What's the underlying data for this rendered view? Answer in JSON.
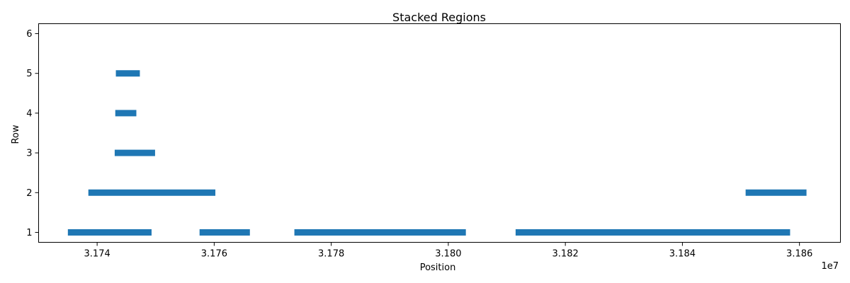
{
  "chart_data": {
    "type": "bar",
    "orientation": "horizontal-segments",
    "title": "Stacked Regions",
    "xlabel": "Position",
    "ylabel": "Row",
    "x_offset_label": "1e7",
    "x_scale": 10000000,
    "xlim": [
      3.173,
      3.1867
    ],
    "ylim": [
      0.75,
      6.25
    ],
    "x_ticks": [
      3.174,
      3.176,
      3.178,
      3.18,
      3.182,
      3.184,
      3.186
    ],
    "x_tick_labels": [
      "3.174",
      "3.176",
      "3.178",
      "3.180",
      "3.182",
      "3.184",
      "3.186"
    ],
    "y_ticks": [
      1,
      2,
      3,
      4,
      5,
      6
    ],
    "y_tick_labels": [
      "1",
      "2",
      "3",
      "4",
      "5",
      "6"
    ],
    "grid": false,
    "bar_color": "#1f77b4",
    "segments": [
      {
        "row": 1,
        "start": 3.1735,
        "end": 3.17493
      },
      {
        "row": 1,
        "start": 3.17575,
        "end": 3.17661
      },
      {
        "row": 1,
        "start": 3.17737,
        "end": 3.1803
      },
      {
        "row": 1,
        "start": 3.18115,
        "end": 3.18584
      },
      {
        "row": 2,
        "start": 3.17385,
        "end": 3.17602
      },
      {
        "row": 2,
        "start": 3.18508,
        "end": 3.18612
      },
      {
        "row": 3,
        "start": 3.1743,
        "end": 3.17499
      },
      {
        "row": 4,
        "start": 3.17431,
        "end": 3.17467
      },
      {
        "row": 5,
        "start": 3.17432,
        "end": 3.17473
      }
    ]
  }
}
